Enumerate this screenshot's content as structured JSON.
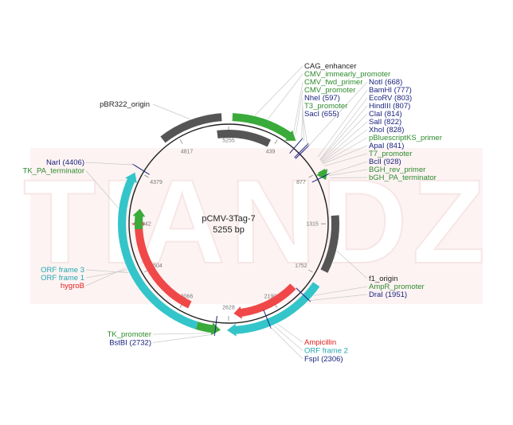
{
  "plasmid": {
    "name": "pCMV-3Tag-7",
    "size": "5255 bp"
  },
  "watermark": "TIANDZ",
  "colors": {
    "feature_green": "#3aaa3a",
    "feature_gray": "#555555",
    "orf_cyan": "#33c5c9",
    "marker_red": "#f04848",
    "enzyme_blue": "#1a237e",
    "primer_green": "#2e8b2e",
    "label_red": "#e02020",
    "label_cyan": "#22a8b0"
  },
  "ticks": [
    {
      "text": "5255",
      "pos": 0
    },
    {
      "text": "439",
      "pos": 439
    },
    {
      "text": "877",
      "pos": 877
    },
    {
      "text": "1315",
      "pos": 1315
    },
    {
      "text": "1752",
      "pos": 1752
    },
    {
      "text": "2190",
      "pos": 2190
    },
    {
      "text": "2628",
      "pos": 2628
    },
    {
      "text": "3066",
      "pos": 3066
    },
    {
      "text": "3504",
      "pos": 3504
    },
    {
      "text": "3942",
      "pos": 3942
    },
    {
      "text": "4379",
      "pos": 4379
    },
    {
      "text": "4817",
      "pos": 4817
    }
  ],
  "features": [
    {
      "name": "pbr322-origin-arc",
      "start": 4700,
      "end": 5200,
      "track": "outer",
      "color": "gray",
      "arrow": "none"
    },
    {
      "name": "cag-enhancer-arc",
      "start": 30,
      "end": 570,
      "track": "outer",
      "color": "green",
      "arrow": "end"
    },
    {
      "name": "cmv-promoter-arc",
      "start": 5150,
      "end": 390,
      "track": "inner",
      "color": "gray",
      "arrow": "none"
    },
    {
      "name": "ampr-promoter-arc",
      "start": 880,
      "end": 960,
      "track": "outer",
      "color": "green",
      "arrow": "end"
    },
    {
      "name": "f1-origin-arc",
      "start": 1250,
      "end": 1700,
      "track": "outer",
      "color": "gray",
      "arrow": "none"
    },
    {
      "name": "ampicillin-arc",
      "start": 1960,
      "end": 2580,
      "track": "inner",
      "color": "red",
      "arrow": "end"
    },
    {
      "name": "orf-frame-2-arc",
      "start": 1820,
      "end": 2640,
      "track": "outer",
      "color": "cyan",
      "arrow": "end"
    },
    {
      "name": "tk-promoter-arc",
      "start": 2690,
      "end": 2880,
      "track": "outer",
      "color": "green",
      "arrow": "start"
    },
    {
      "name": "orf-frame-3-arc",
      "start": 2880,
      "end": 4360,
      "track": "outer",
      "color": "cyan",
      "arrow": "end"
    },
    {
      "name": "hygrob-arc",
      "start": 3000,
      "end": 4000,
      "track": "inner",
      "color": "red",
      "arrow": "end"
    },
    {
      "name": "tk-pa-terminator-arc",
      "start": 3890,
      "end": 4080,
      "track": "inner",
      "color": "green",
      "arrow": "end"
    }
  ],
  "site_marks": [
    {
      "name": "naei-site-mark",
      "pos": 4406
    },
    {
      "name": "bstbi-site-mark",
      "pos": 2732
    },
    {
      "name": "fspi-site-mark",
      "pos": 2306
    },
    {
      "name": "drai-site-mark",
      "pos": 1951
    },
    {
      "name": "noti-site-mark",
      "pos": 668
    },
    {
      "name": "nhei-site-mark",
      "pos": 597
    },
    {
      "name": "saci-site-mark",
      "pos": 655
    },
    {
      "name": "bcli-site-mark",
      "pos": 928
    }
  ],
  "labels_top": [
    {
      "text": "CAG_enhancer",
      "kind": "feature",
      "pos": 200
    },
    {
      "text": "CMV_immearly_promoter",
      "kind": "primer",
      "pos": 300
    },
    {
      "text": "CMV_fwd_primer",
      "kind": "primer",
      "pos": 520
    },
    {
      "text": "CMV_promoter",
      "kind": "primer",
      "pos": 540
    },
    {
      "text": "NheI (597)",
      "kind": "enzyme",
      "pos": 597
    },
    {
      "text": "T3_promoter",
      "kind": "primer",
      "pos": 620
    },
    {
      "text": "SacI (655)",
      "kind": "enzyme",
      "pos": 655
    }
  ],
  "labels_mcs": [
    {
      "text": "NotI (668)",
      "kind": "enzyme",
      "pos": 668
    },
    {
      "text": "BamHI (777)",
      "kind": "enzyme",
      "pos": 777
    },
    {
      "text": "EcoRV (803)",
      "kind": "enzyme",
      "pos": 803
    },
    {
      "text": "HindIII (807)",
      "kind": "enzyme",
      "pos": 807
    },
    {
      "text": "ClaI (814)",
      "kind": "enzyme",
      "pos": 814
    },
    {
      "text": "SalI (822)",
      "kind": "enzyme",
      "pos": 822
    },
    {
      "text": "XhoI (828)",
      "kind": "enzyme",
      "pos": 828
    },
    {
      "text": "pBluescriptKS_primer",
      "kind": "primer",
      "pos": 835
    },
    {
      "text": "ApaI (841)",
      "kind": "enzyme",
      "pos": 841
    },
    {
      "text": "T7_promoter",
      "kind": "primer",
      "pos": 860
    },
    {
      "text": "BclI (928)",
      "kind": "enzyme",
      "pos": 928
    },
    {
      "text": "BGH_rev_primer",
      "kind": "primer",
      "pos": 940
    },
    {
      "text": "bGH_PA_terminator",
      "kind": "primer",
      "pos": 960
    }
  ],
  "labels_right_lower": [
    {
      "text": "f1_origin",
      "kind": "feature",
      "pos": 1520
    },
    {
      "text": "AmpR_promoter",
      "kind": "primer",
      "pos": 1900
    },
    {
      "text": "DraI (1951)",
      "kind": "enzyme",
      "pos": 1951
    }
  ],
  "labels_bottom_right": [
    {
      "text": "Ampicillin",
      "kind": "red",
      "pos": 2250
    },
    {
      "text": "ORF frame 2",
      "kind": "cyan",
      "pos": 2280
    },
    {
      "text": "FspI (2306)",
      "kind": "enzyme",
      "pos": 2306
    }
  ],
  "labels_bottom_left": [
    {
      "text": "TK_promoter",
      "kind": "primer",
      "pos": 2780
    },
    {
      "text": "BstBI (2732)",
      "kind": "enzyme",
      "pos": 2732
    }
  ],
  "labels_left_mid": [
    {
      "text": "ORF frame 3",
      "kind": "cyan",
      "pos": 3560
    },
    {
      "text": "ORF frame 1",
      "kind": "cyan",
      "pos": 3580
    },
    {
      "text": "hygroB",
      "kind": "red",
      "pos": 3600
    }
  ],
  "labels_left_top": [
    {
      "text": "NarI (4406)",
      "kind": "enzyme",
      "pos": 4406
    },
    {
      "text": "TK_PA_terminator",
      "kind": "primer",
      "pos": 4060
    }
  ],
  "label_pbr": {
    "text": "pBR322_origin",
    "kind": "feature",
    "pos": 4960
  }
}
